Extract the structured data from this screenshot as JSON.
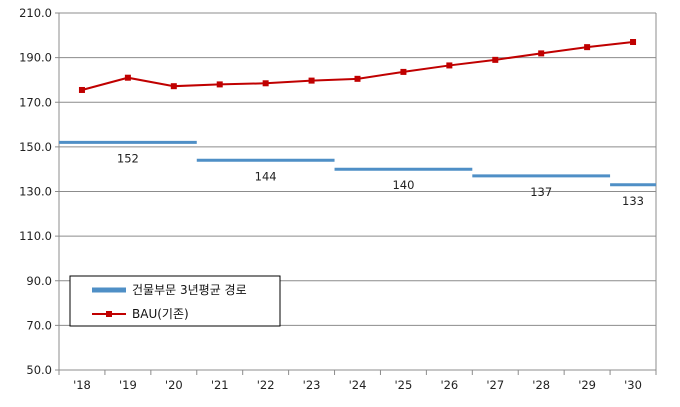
{
  "chart_data": {
    "type": "line",
    "categories": [
      "'18",
      "'19",
      "'20",
      "'21",
      "'22",
      "'23",
      "'24",
      "'25",
      "'26",
      "'27",
      "'28",
      "'29",
      "'30"
    ],
    "ylim": [
      50.0,
      210.0
    ],
    "yticks": [
      "50.0",
      "70.0",
      "90.0",
      "110.0",
      "130.0",
      "150.0",
      "170.0",
      "190.0",
      "210.0"
    ],
    "grid": true,
    "legend_position": "bottom-left",
    "series": [
      {
        "name": "BAU(기존)",
        "kind": "line",
        "color": "#c00000",
        "marker": "square",
        "values": [
          175.5,
          181.0,
          177.2,
          178.0,
          178.5,
          179.7,
          180.5,
          183.6,
          186.5,
          189.0,
          191.9,
          194.7,
          197.0
        ]
      },
      {
        "name": "건물부문 3년평균 경로",
        "kind": "step",
        "color": "#4f8fc6",
        "segments": [
          {
            "from": "'18",
            "to": "'20",
            "value": 152,
            "label": "152"
          },
          {
            "from": "'21",
            "to": "'23",
            "value": 144,
            "label": "144"
          },
          {
            "from": "'24",
            "to": "'26",
            "value": 140,
            "label": "140"
          },
          {
            "from": "'27",
            "to": "'29",
            "value": 137,
            "label": "137"
          },
          {
            "from": "'30",
            "to": "'30",
            "value": 133,
            "label": "133"
          }
        ]
      }
    ]
  }
}
